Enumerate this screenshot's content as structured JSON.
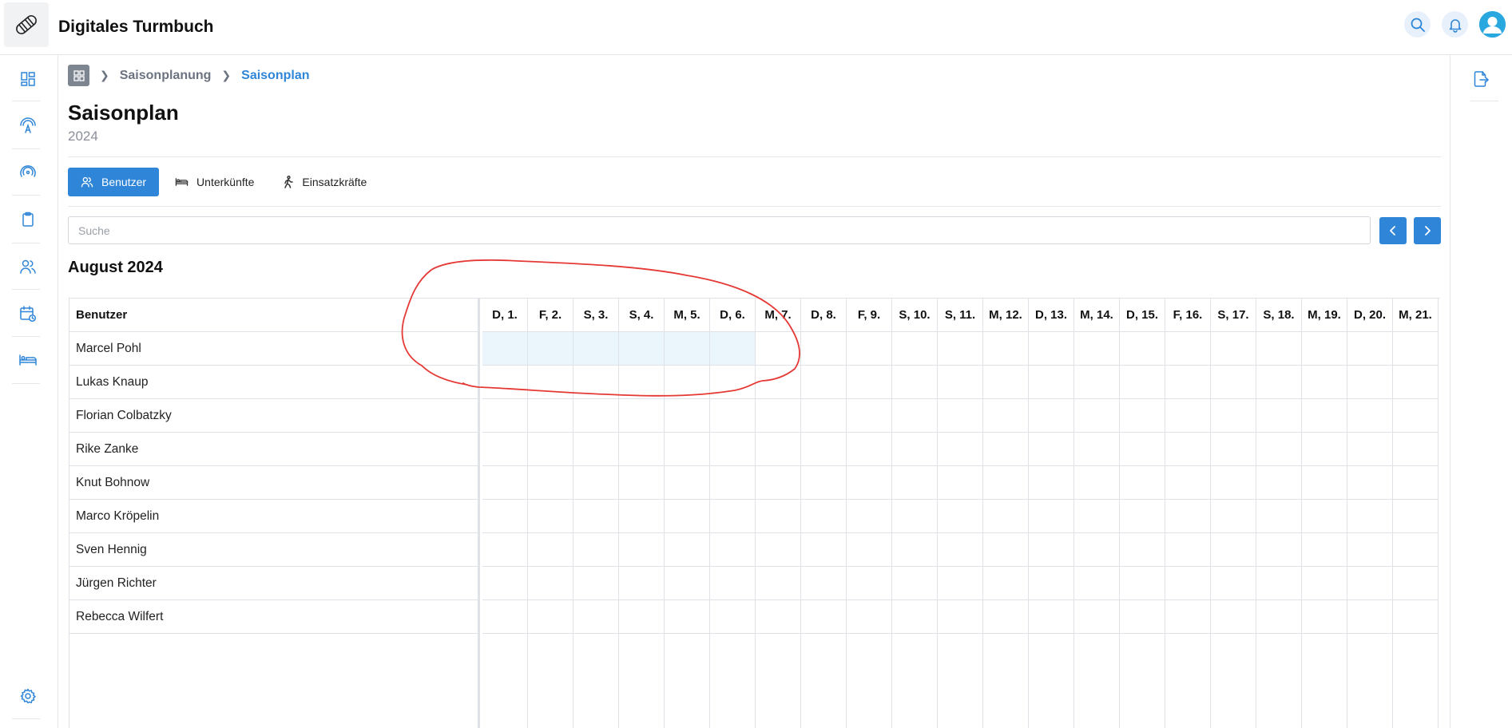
{
  "app": {
    "title": "Digitales Turmbuch"
  },
  "breadcrumb": {
    "items": [
      "Saisonplanung",
      "Saisonplan"
    ]
  },
  "page": {
    "title": "Saisonplan",
    "subtitle": "2024"
  },
  "tabs": [
    {
      "label": "Benutzer",
      "icon": "users-icon",
      "active": true
    },
    {
      "label": "Unterkünfte",
      "icon": "bed-icon",
      "active": false
    },
    {
      "label": "Einsatzkräfte",
      "icon": "walking-person-icon",
      "active": false
    }
  ],
  "search": {
    "placeholder": "Suche",
    "value": ""
  },
  "calendar": {
    "month_label": "August 2024",
    "name_header": "Benutzer",
    "days": [
      "D, 1.",
      "F, 2.",
      "S, 3.",
      "S, 4.",
      "M, 5.",
      "D, 6.",
      "M, 7.",
      "D, 8.",
      "F, 9.",
      "S, 10.",
      "S, 11.",
      "M, 12.",
      "D, 13.",
      "M, 14.",
      "D, 15.",
      "F, 16.",
      "S, 17.",
      "S, 18.",
      "M, 19.",
      "D, 20.",
      "M, 21."
    ],
    "users": [
      "Marcel Pohl",
      "Lukas Knaup",
      "Florian Colbatzky",
      "Rike Zanke",
      "Knut Bohnow",
      "Marco Kröpelin",
      "Sven Hennig",
      "Jürgen Richter",
      "Rebecca Wilfert"
    ],
    "selection": {
      "user_index": 0,
      "day_from": 0,
      "day_to": 5
    }
  },
  "colors": {
    "accent": "#2f86d8",
    "selection": "#eaf6fb",
    "annotation": "#e53935"
  }
}
